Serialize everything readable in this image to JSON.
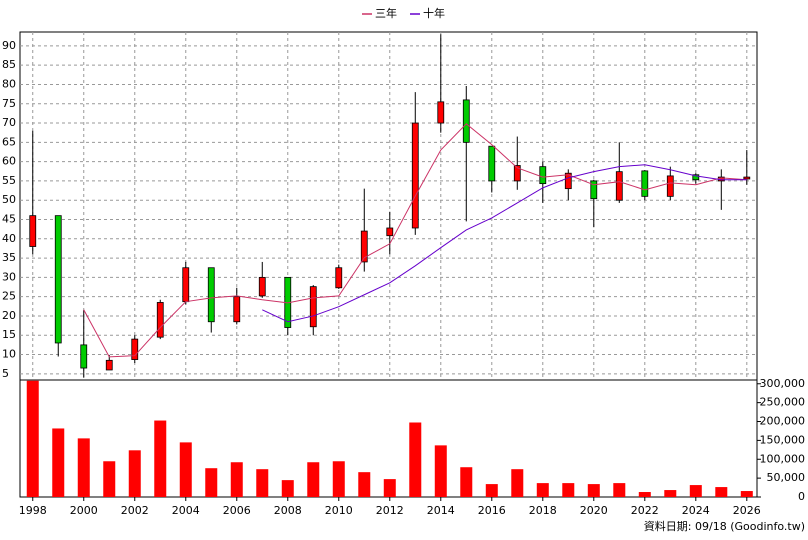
{
  "chart_data": {
    "type": "candlestick",
    "x": [
      1998,
      1999,
      2000,
      2001,
      2002,
      2003,
      2004,
      2005,
      2006,
      2007,
      2008,
      2009,
      2010,
      2011,
      2012,
      2013,
      2014,
      2015,
      2016,
      2017,
      2018,
      2019,
      2020,
      2021,
      2022,
      2023,
      2024,
      2025,
      2026
    ],
    "xlim": [
      1997.5,
      2026.4
    ],
    "xticks": [
      1998,
      2000,
      2002,
      2004,
      2006,
      2008,
      2010,
      2012,
      2014,
      2016,
      2018,
      2020,
      2022,
      2024,
      2026
    ],
    "ylim": [
      3.4,
      93.6
    ],
    "yticks": [
      5,
      10,
      15,
      20,
      25,
      30,
      35,
      40,
      45,
      50,
      55,
      60,
      65,
      70,
      75,
      80,
      85,
      90
    ],
    "y2lim": [
      0,
      310000
    ],
    "y2ticks": [
      0,
      {
        "value": 50000,
        "label": "50,000"
      },
      {
        "value": 100000,
        "label": "100,000"
      },
      {
        "value": 150000,
        "label": "150,000"
      },
      {
        "value": 200000,
        "label": "200,000"
      },
      {
        "value": 250000,
        "label": "250,000"
      },
      {
        "value": 300000,
        "label": "300,000"
      }
    ],
    "open": [
      38,
      46,
      12.5,
      6,
      8.7,
      14.5,
      23.7,
      32.5,
      18.5,
      25.2,
      30,
      17.2,
      27.3,
      34,
      40.8,
      42.8,
      70,
      76,
      64,
      55,
      58.7,
      53,
      55,
      50,
      57.6,
      51,
      56.6,
      55,
      55.5
    ],
    "high": [
      68,
      46,
      21.5,
      9.9,
      15,
      24.2,
      34,
      32.5,
      27.3,
      34,
      30,
      28,
      33.3,
      53,
      47,
      78,
      93,
      79.6,
      64,
      66.5,
      60,
      58,
      55.3,
      65,
      57.8,
      58.7,
      57,
      58,
      63
    ],
    "low": [
      36,
      9.5,
      4,
      6,
      7.8,
      14,
      23,
      15.7,
      17.8,
      24.7,
      15,
      15,
      27,
      31.5,
      36,
      41,
      67.5,
      44.5,
      52,
      52.7,
      49.3,
      50,
      43,
      49.3,
      50,
      50,
      54.3,
      47.5,
      54
    ],
    "close": [
      46,
      13,
      6.5,
      8.5,
      14,
      23.5,
      32.5,
      18.5,
      25,
      30,
      17,
      27.6,
      32.5,
      42,
      42.8,
      70,
      75.5,
      65,
      55,
      59,
      54.3,
      57,
      50.4,
      57.4,
      51,
      56.3,
      55.3,
      56,
      56
    ],
    "up_color": "#ff0000",
    "down_color": "#00cc00",
    "series": [
      {
        "name": "三年",
        "color": "#cc3366",
        "values": [
          null,
          null,
          21.6,
          9.4,
          9.7,
          17,
          23.7,
          24.7,
          25.2,
          24.2,
          23.4,
          24.7,
          25.2,
          35.1,
          38.7,
          51.1,
          63,
          69.8,
          64.4,
          58.4,
          56,
          56.6,
          54,
          54.8,
          52.7,
          54.5,
          54,
          55.8,
          55.3
        ]
      },
      {
        "name": "十年",
        "color": "#6600cc",
        "values": [
          null,
          null,
          null,
          null,
          null,
          null,
          null,
          null,
          null,
          21.6,
          18.5,
          20,
          22.4,
          25.5,
          28.6,
          33,
          37.7,
          42.3,
          45.4,
          49.3,
          53.2,
          55.8,
          57.4,
          58.7,
          59.2,
          57.9,
          56.3,
          55.3,
          55.3
        ]
      }
    ],
    "volume": {
      "color": "#ff0000",
      "axis": "y2",
      "values": [
        308000,
        181600,
        155300,
        94700,
        123700,
        202600,
        144700,
        76300,
        92100,
        73700,
        44700,
        92100,
        94700,
        65800,
        47400,
        197400,
        136800,
        78900,
        34200,
        73700,
        36800,
        36800,
        34200,
        36800,
        13200,
        18400,
        31600,
        26300,
        15800
      ]
    },
    "grid": true,
    "legend": "top",
    "annotation": "資料日期: 09/18 (Goodinfo.tw)"
  }
}
